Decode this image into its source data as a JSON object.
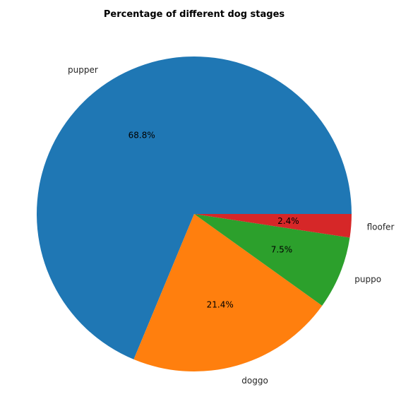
{
  "chart_data": {
    "type": "pie",
    "title": "Percentage of different dog stages",
    "slices": [
      {
        "label": "pupper",
        "value": 68.8,
        "pct_label": "68.8%",
        "color": "#1f77b4"
      },
      {
        "label": "doggo",
        "value": 21.4,
        "pct_label": "21.4%",
        "color": "#ff7f0e"
      },
      {
        "label": "puppo",
        "value": 7.5,
        "pct_label": "7.5%",
        "color": "#2ca02c"
      },
      {
        "label": "floofer",
        "value": 2.4,
        "pct_label": "2.4%",
        "color": "#d62728"
      }
    ],
    "start_angle_deg": 0,
    "direction": "counterclockwise",
    "legend": "none"
  }
}
